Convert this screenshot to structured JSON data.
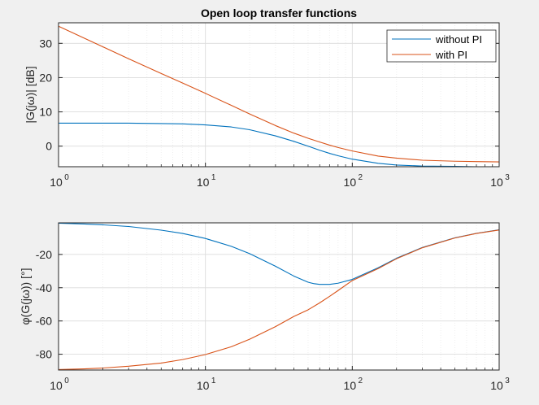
{
  "figure": {
    "background": "#f0f0f0",
    "axes_background": "#ffffff",
    "colors": {
      "without_pi": "#0072BD",
      "with_pi": "#D95319",
      "grid_major": "#dcdcdc",
      "grid_minor": "#ebebeb"
    }
  },
  "chart_data": [
    {
      "type": "line",
      "title": "Open loop transfer functions",
      "xlabel": "",
      "ylabel": "|G(jω)| [dB]",
      "xscale": "log",
      "xlim": [
        1,
        1000
      ],
      "ylim": [
        -6,
        36
      ],
      "xticks": [
        1,
        10,
        100,
        1000
      ],
      "xtick_labels": [
        {
          "base": "10",
          "exp": "0"
        },
        {
          "base": "10",
          "exp": "1"
        },
        {
          "base": "10",
          "exp": "2"
        },
        {
          "base": "10",
          "exp": "3"
        }
      ],
      "yticks": [
        30,
        20,
        10,
        0
      ],
      "ytick_labels": [
        "30",
        "20",
        "10",
        "0"
      ],
      "grid": true,
      "minor_grid": true,
      "legend": {
        "placement": "top-right",
        "entries": [
          "without PI",
          "with PI"
        ]
      },
      "series": [
        {
          "name": "without PI",
          "x": [
            1,
            2,
            3,
            5,
            7,
            10,
            15,
            20,
            30,
            40,
            50,
            60,
            70,
            80,
            100,
            150,
            200,
            300,
            500,
            700,
            1000
          ],
          "y": [
            6.7,
            6.7,
            6.7,
            6.6,
            6.5,
            6.2,
            5.6,
            4.8,
            3.0,
            1.4,
            0.0,
            -1.2,
            -2.1,
            -2.8,
            -3.8,
            -5.0,
            -5.5,
            -5.8,
            -5.9,
            -6.0,
            -6.0
          ]
        },
        {
          "name": "with PI",
          "x": [
            1,
            2,
            3,
            5,
            7,
            10,
            15,
            20,
            30,
            40,
            50,
            60,
            70,
            80,
            100,
            150,
            200,
            300,
            500,
            700,
            1000
          ],
          "y": [
            35.0,
            29.0,
            25.5,
            21.2,
            18.4,
            15.4,
            11.9,
            9.4,
            6.0,
            3.8,
            2.3,
            1.2,
            0.3,
            -0.4,
            -1.4,
            -2.9,
            -3.5,
            -4.1,
            -4.4,
            -4.5,
            -4.6
          ]
        }
      ]
    },
    {
      "type": "line",
      "title": "",
      "xlabel": "",
      "ylabel": "φ(G(jω)) [°]",
      "xscale": "log",
      "xlim": [
        1,
        1000
      ],
      "ylim": [
        -89.5,
        -1
      ],
      "xticks": [
        1,
        10,
        100,
        1000
      ],
      "xtick_labels": [
        {
          "base": "10",
          "exp": "0"
        },
        {
          "base": "10",
          "exp": "1"
        },
        {
          "base": "10",
          "exp": "2"
        },
        {
          "base": "10",
          "exp": "3"
        }
      ],
      "yticks": [
        -20,
        -40,
        -60,
        -80
      ],
      "ytick_labels": [
        "-20",
        "-40",
        "-60",
        "-80"
      ],
      "grid": true,
      "minor_grid": true,
      "series": [
        {
          "name": "without PI",
          "x": [
            1,
            1.5,
            2,
            3,
            5,
            7,
            10,
            15,
            20,
            30,
            40,
            50,
            55,
            60,
            70,
            80,
            100,
            150,
            200,
            300,
            500,
            700,
            1000
          ],
          "y": [
            -1.2,
            -1.7,
            -2.2,
            -3.2,
            -5.4,
            -7.4,
            -10.4,
            -15.1,
            -19.5,
            -27.1,
            -33.0,
            -36.7,
            -37.6,
            -38.0,
            -38.0,
            -37.3,
            -35.0,
            -28.0,
            -22.3,
            -15.8,
            -10.0,
            -7.3,
            -5.2
          ]
        },
        {
          "name": "with PI",
          "x": [
            1,
            1.5,
            2,
            3,
            5,
            7,
            10,
            15,
            20,
            30,
            40,
            50,
            60,
            70,
            80,
            100,
            150,
            200,
            300,
            500,
            700,
            1000
          ],
          "y": [
            -89.2,
            -88.8,
            -88.3,
            -87.2,
            -85.3,
            -83.2,
            -80.2,
            -75.5,
            -71.0,
            -63.4,
            -57.3,
            -53.3,
            -49.1,
            -45.2,
            -41.7,
            -35.7,
            -28.5,
            -22.6,
            -16.0,
            -10.1,
            -7.4,
            -5.3
          ]
        }
      ]
    }
  ]
}
